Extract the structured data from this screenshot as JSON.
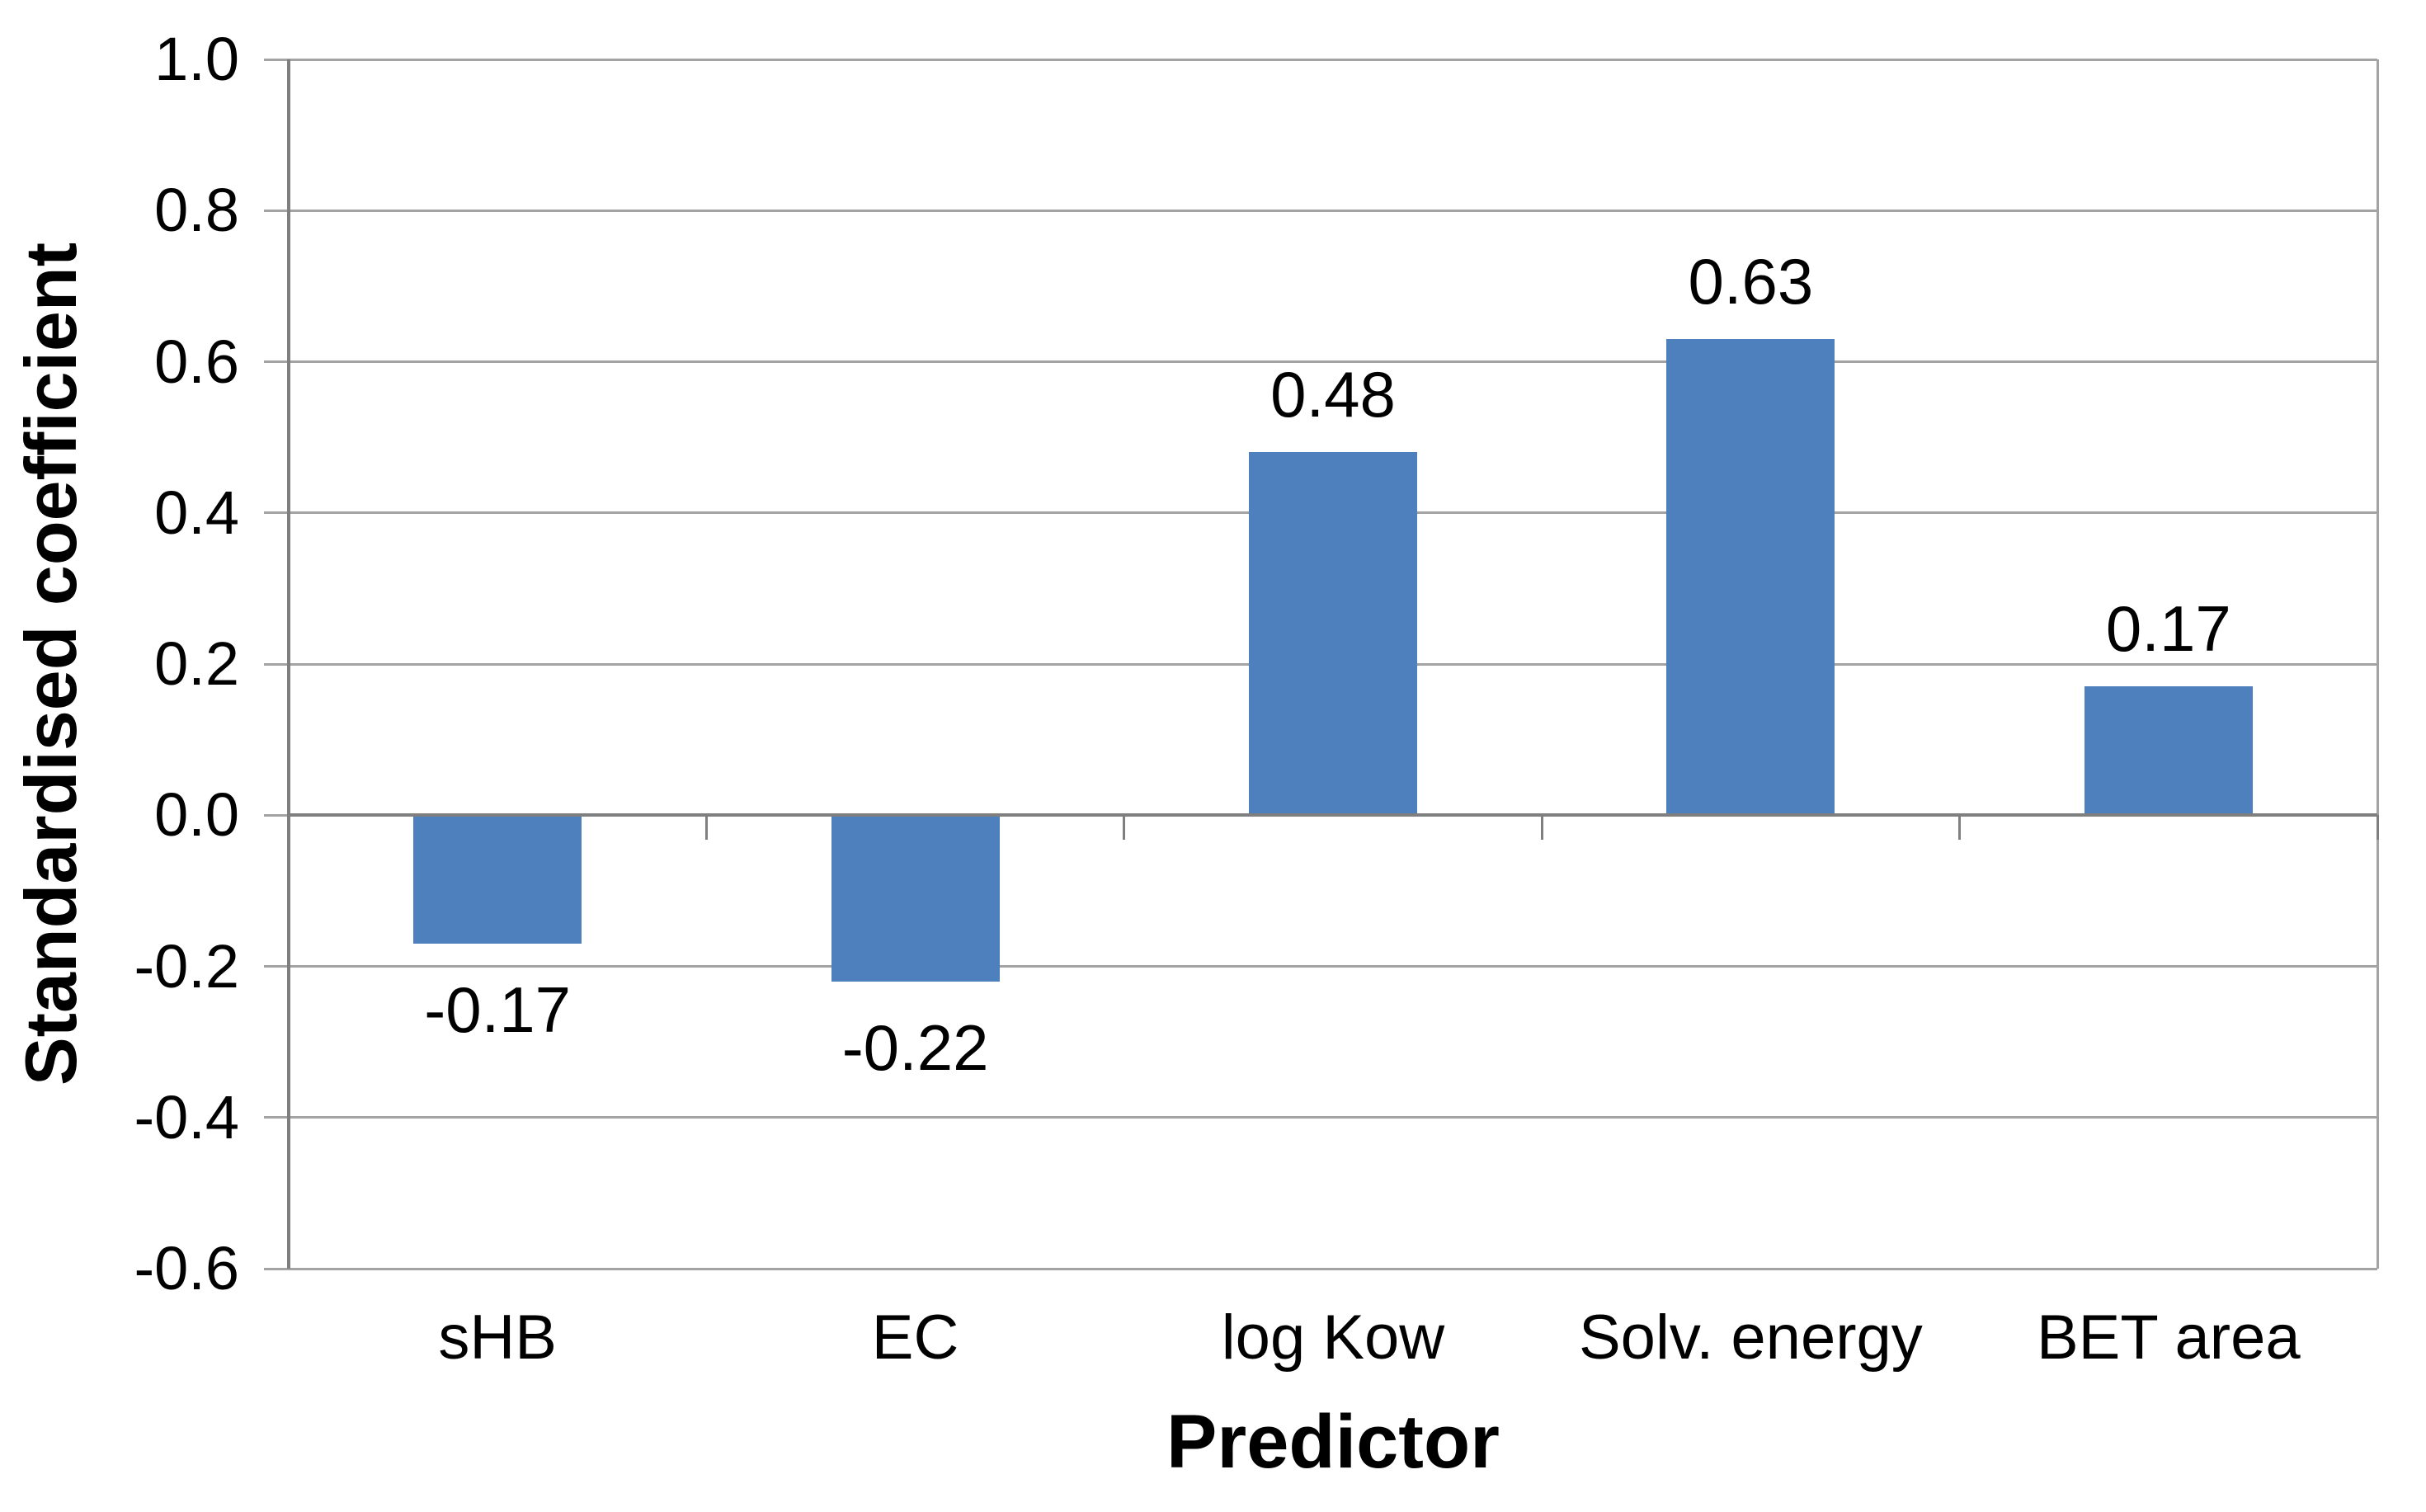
{
  "chart_data": {
    "type": "bar",
    "title": "",
    "categories": [
      "sHB",
      "EC",
      "log Kow",
      "Solv. energy",
      "BET area"
    ],
    "values": [
      -0.17,
      -0.22,
      0.48,
      0.63,
      0.17
    ],
    "data_labels": [
      "-0.17",
      "-0.22",
      "0.48",
      "0.63",
      "0.17"
    ],
    "xlabel": "Predictor",
    "ylabel": "Standardised coefficient",
    "ylim": [
      -0.6,
      1.0
    ],
    "ytick_step": 0.2,
    "yticks": [
      1.0,
      0.8,
      0.6,
      0.4,
      0.2,
      0.0,
      -0.2,
      -0.4,
      -0.6
    ],
    "ytick_labels": [
      "1.0",
      "0.8",
      "0.6",
      "0.4",
      "0.2",
      "0.0",
      "-0.2",
      "-0.4",
      "-0.6"
    ],
    "grid": true,
    "legend": "none",
    "bar_color": "#4D80BD",
    "gridline_color": "#A3A3A3",
    "axis_color": "#7F7F7F",
    "text_color": "#000000",
    "background_color": "#FFFFFF"
  }
}
